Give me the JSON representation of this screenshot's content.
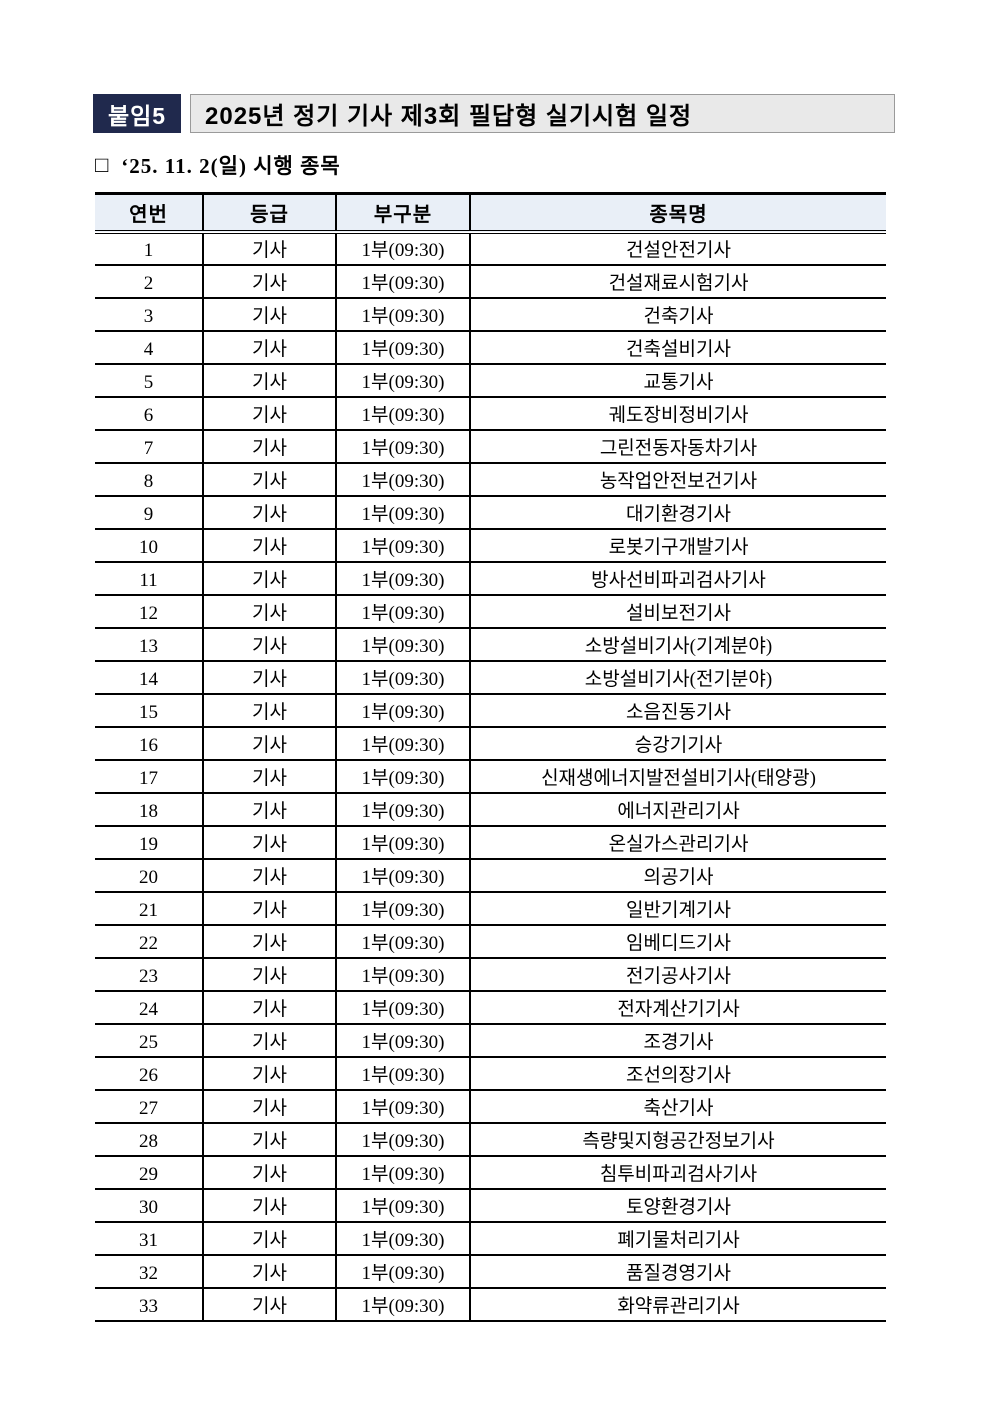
{
  "document": {
    "badge": "붙임5",
    "title": "2025년 정기 기사 제3회 필답형 실기시험 일정",
    "section_marker": "□",
    "section_title": "‘25. 11. 2(일) 시행 종목"
  },
  "colors": {
    "badge_bg": "#20294d",
    "badge_text": "#ffffff",
    "title_box_bg": "#e9e9e9",
    "title_box_border": "#9a9a9a",
    "table_header_bg": "#e9eff7",
    "table_border": "#000000",
    "page_bg": "#ffffff"
  },
  "table": {
    "headers": [
      "연번",
      "등급",
      "부구분",
      "종목명"
    ],
    "rows": [
      [
        "1",
        "기사",
        "1부(09:30)",
        "건설안전기사"
      ],
      [
        "2",
        "기사",
        "1부(09:30)",
        "건설재료시험기사"
      ],
      [
        "3",
        "기사",
        "1부(09:30)",
        "건축기사"
      ],
      [
        "4",
        "기사",
        "1부(09:30)",
        "건축설비기사"
      ],
      [
        "5",
        "기사",
        "1부(09:30)",
        "교통기사"
      ],
      [
        "6",
        "기사",
        "1부(09:30)",
        "궤도장비정비기사"
      ],
      [
        "7",
        "기사",
        "1부(09:30)",
        "그린전동자동차기사"
      ],
      [
        "8",
        "기사",
        "1부(09:30)",
        "농작업안전보건기사"
      ],
      [
        "9",
        "기사",
        "1부(09:30)",
        "대기환경기사"
      ],
      [
        "10",
        "기사",
        "1부(09:30)",
        "로봇기구개발기사"
      ],
      [
        "11",
        "기사",
        "1부(09:30)",
        "방사선비파괴검사기사"
      ],
      [
        "12",
        "기사",
        "1부(09:30)",
        "설비보전기사"
      ],
      [
        "13",
        "기사",
        "1부(09:30)",
        "소방설비기사(기계분야)"
      ],
      [
        "14",
        "기사",
        "1부(09:30)",
        "소방설비기사(전기분야)"
      ],
      [
        "15",
        "기사",
        "1부(09:30)",
        "소음진동기사"
      ],
      [
        "16",
        "기사",
        "1부(09:30)",
        "승강기기사"
      ],
      [
        "17",
        "기사",
        "1부(09:30)",
        "신재생에너지발전설비기사(태양광)"
      ],
      [
        "18",
        "기사",
        "1부(09:30)",
        "에너지관리기사"
      ],
      [
        "19",
        "기사",
        "1부(09:30)",
        "온실가스관리기사"
      ],
      [
        "20",
        "기사",
        "1부(09:30)",
        "의공기사"
      ],
      [
        "21",
        "기사",
        "1부(09:30)",
        "일반기계기사"
      ],
      [
        "22",
        "기사",
        "1부(09:30)",
        "임베디드기사"
      ],
      [
        "23",
        "기사",
        "1부(09:30)",
        "전기공사기사"
      ],
      [
        "24",
        "기사",
        "1부(09:30)",
        "전자계산기기사"
      ],
      [
        "25",
        "기사",
        "1부(09:30)",
        "조경기사"
      ],
      [
        "26",
        "기사",
        "1부(09:30)",
        "조선의장기사"
      ],
      [
        "27",
        "기사",
        "1부(09:30)",
        "축산기사"
      ],
      [
        "28",
        "기사",
        "1부(09:30)",
        "측량및지형공간정보기사"
      ],
      [
        "29",
        "기사",
        "1부(09:30)",
        "침투비파괴검사기사"
      ],
      [
        "30",
        "기사",
        "1부(09:30)",
        "토양환경기사"
      ],
      [
        "31",
        "기사",
        "1부(09:30)",
        "폐기물처리기사"
      ],
      [
        "32",
        "기사",
        "1부(09:30)",
        "품질경영기사"
      ],
      [
        "33",
        "기사",
        "1부(09:30)",
        "화약류관리기사"
      ]
    ]
  }
}
